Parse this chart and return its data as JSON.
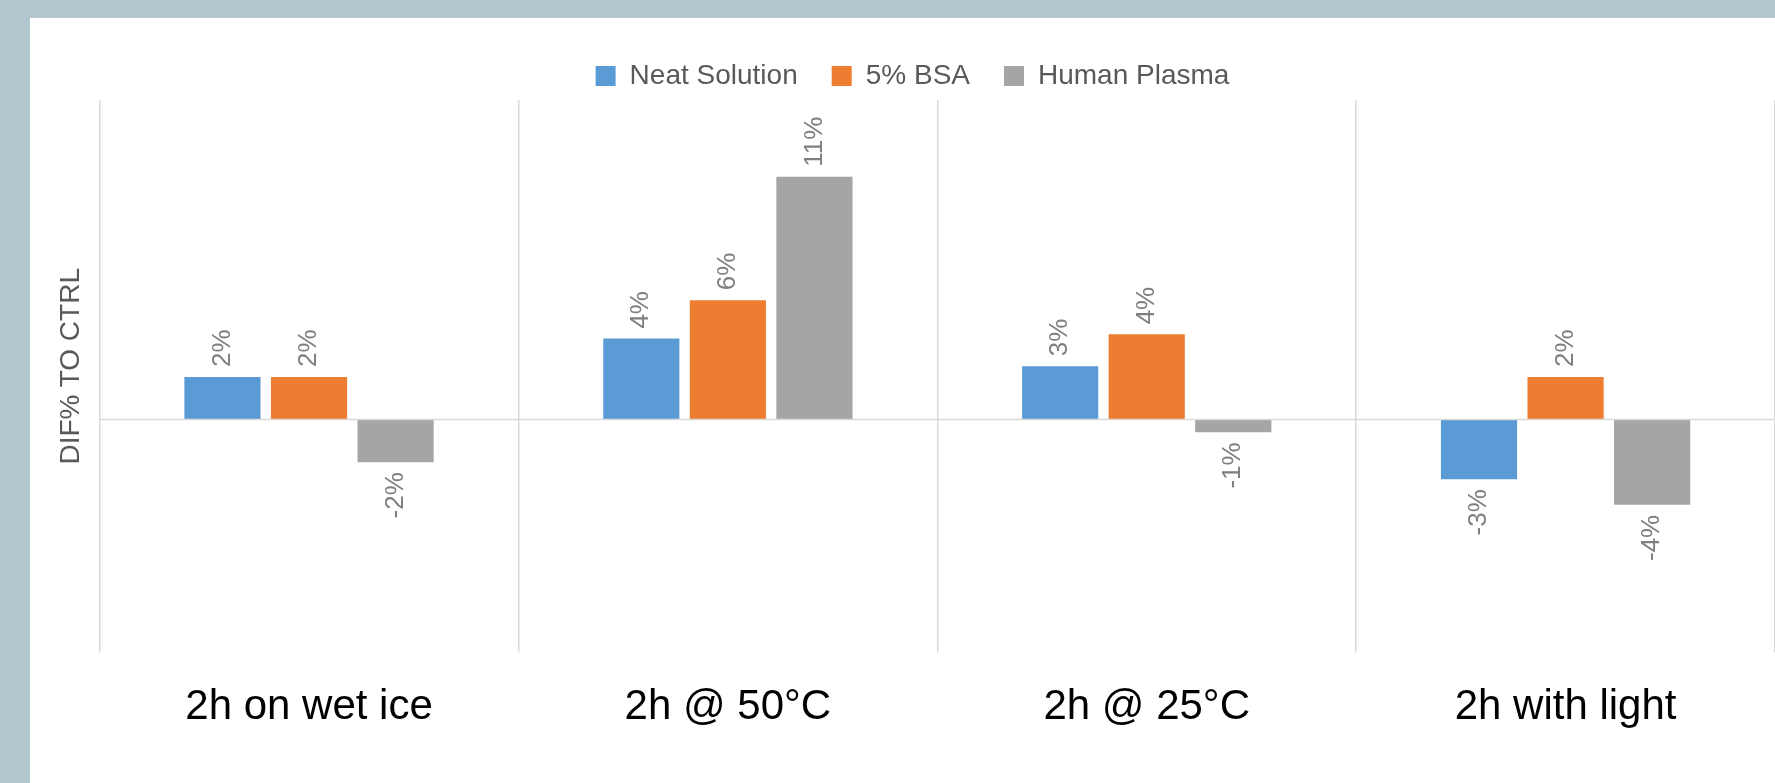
{
  "chart_data": {
    "type": "bar",
    "ylabel": "DIF% TO CTRL",
    "categories": [
      "2h on wet ice",
      "2h @ 50°C",
      "2h @ 25°C",
      "2h with light"
    ],
    "series": [
      {
        "name": "Neat Solution",
        "color": "#5b9bd5",
        "values": [
          2.0,
          3.8,
          2.5,
          -2.8
        ],
        "value_labels": [
          "2%",
          "4%",
          "3%",
          "-3%"
        ]
      },
      {
        "name": "5% BSA",
        "color": "#ed7d31",
        "values": [
          2.0,
          5.6,
          4.0,
          2.0
        ],
        "value_labels": [
          "2%",
          "6%",
          "4%",
          "2%"
        ]
      },
      {
        "name": "Human Plasma",
        "color": "#a5a5a5",
        "values": [
          -2.0,
          11.4,
          -0.6,
          -4.0
        ],
        "value_labels": [
          "-2%",
          "11%",
          "-1%",
          "-4%"
        ]
      }
    ],
    "grid": "x",
    "legend": "top"
  }
}
